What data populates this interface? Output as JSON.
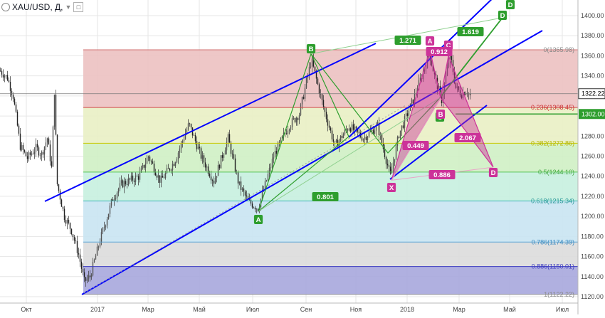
{
  "header": {
    "title": "XAU/USD, Д,",
    "chevron_icon": "chevron-down-icon",
    "settings_icon": "square-settings-icon"
  },
  "colors": {
    "channel": "#0000ff",
    "bullish_pattern": "#2e9e2e",
    "bearish_pattern": "#cc3399",
    "grid": "#e6e6e6",
    "price_line": "#444444"
  },
  "fib_levels": [
    {
      "ratio": 0,
      "price": 1365.98,
      "label": "0(1365.98)",
      "fill": "#ecc1c1",
      "line": "#d07070",
      "text": "#888888"
    },
    {
      "ratio": 0.236,
      "price": 1308.45,
      "label": "0.236(1308.45)",
      "fill": "#e9efc4",
      "line": "#d14c4c",
      "text": "#cc3333"
    },
    {
      "ratio": 0.382,
      "price": 1272.86,
      "label": "0.382(1272.86)",
      "fill": "#cff0c4",
      "line": "#c8c800",
      "text": "#b5b500"
    },
    {
      "ratio": 0.5,
      "price": 1244.1,
      "label": "0.5(1244.10)",
      "fill": "#c7efdf",
      "line": "#55c455",
      "text": "#44aa44"
    },
    {
      "ratio": 0.618,
      "price": 1215.34,
      "label": "0.618(1215.34)",
      "fill": "#c9e4f2",
      "line": "#35b3b3",
      "text": "#2a9a9a"
    },
    {
      "ratio": 0.786,
      "price": 1174.39,
      "label": "0.786(1174.39)",
      "fill": "#dcdcdc",
      "line": "#5ca6d6",
      "text": "#3a8ac0"
    },
    {
      "ratio": 0.886,
      "price": 1150.01,
      "label": "0.886(1150.01)",
      "fill": "#a7a7dd",
      "line": "#3a3ac0",
      "text": "#3a3ac0"
    },
    {
      "ratio": 1,
      "price": 1122.22,
      "label": "1(1122.22)",
      "fill": "none",
      "line": "#999999",
      "text": "#888888"
    }
  ],
  "y_axis": {
    "ticks": [
      "1400.00",
      "1380.00",
      "1360.00",
      "1340.00",
      "1320.00",
      "1300.00",
      "1280.00",
      "1260.00",
      "1240.00",
      "1220.00",
      "1200.00",
      "1180.00",
      "1160.00",
      "1140.00",
      "1120.00"
    ],
    "current_price": "1322.22",
    "marker_price": "1302.00",
    "marker_color": "#2e9e2e"
  },
  "x_axis": {
    "ticks": [
      "Окт",
      "2017",
      "Мар",
      "Май",
      "Июл",
      "Сен",
      "Ноя",
      "2018",
      "Мар",
      "Май",
      "Июл"
    ]
  },
  "bullish_pattern": {
    "points": [
      {
        "label": "A",
        "price": 1205
      },
      {
        "label": "B",
        "price": 1362
      },
      {
        "label": "C",
        "price": 1318
      },
      {
        "label": "D",
        "price": 1403
      }
    ],
    "ratios": [
      "0.801",
      "1.271",
      "1.619"
    ]
  },
  "bearish_pattern": {
    "points": [
      {
        "label": "X",
        "price": 1236
      },
      {
        "label": "A",
        "price": 1366
      },
      {
        "label": "B",
        "price": 1318
      },
      {
        "label": "C",
        "price": 1360
      },
      {
        "label": "D",
        "price": 1249
      }
    ],
    "ratios": [
      "0.912",
      "0.449",
      "2.067",
      "0.886"
    ]
  }
}
